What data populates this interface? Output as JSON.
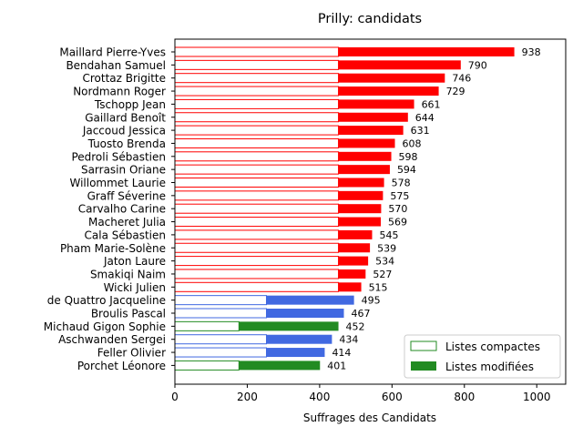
{
  "chart_data": {
    "type": "bar",
    "orientation": "horizontal-stacked",
    "title": "Prilly: candidats",
    "xlabel": "Suffrages des Candidats",
    "ylabel": "",
    "xlim": [
      0,
      1080
    ],
    "xticks": [
      "0",
      "200",
      "400",
      "600",
      "800",
      "1000"
    ],
    "grid": false,
    "legend_position": "bottom-right",
    "legend": [
      {
        "label": "Listes compactes",
        "style": "outline",
        "color": "#228b22"
      },
      {
        "label": "Listes modifiées",
        "style": "filled",
        "color": "#228b22"
      }
    ],
    "candidates": [
      {
        "name": "Maillard Pierre-Yves",
        "compact": 452,
        "total": 938,
        "total_label": "938",
        "color": "#ff0000"
      },
      {
        "name": "Bendahan Samuel",
        "compact": 452,
        "total": 790,
        "total_label": "790",
        "color": "#ff0000"
      },
      {
        "name": "Crottaz Brigitte",
        "compact": 452,
        "total": 746,
        "total_label": "746",
        "color": "#ff0000"
      },
      {
        "name": "Nordmann Roger",
        "compact": 452,
        "total": 729,
        "total_label": "729",
        "color": "#ff0000"
      },
      {
        "name": "Tschopp Jean",
        "compact": 452,
        "total": 661,
        "total_label": "661",
        "color": "#ff0000"
      },
      {
        "name": "Gaillard Benoît",
        "compact": 452,
        "total": 644,
        "total_label": "644",
        "color": "#ff0000"
      },
      {
        "name": "Jaccoud Jessica",
        "compact": 452,
        "total": 631,
        "total_label": "631",
        "color": "#ff0000"
      },
      {
        "name": "Tuosto Brenda",
        "compact": 452,
        "total": 608,
        "total_label": "608",
        "color": "#ff0000"
      },
      {
        "name": "Pedroli Sébastien",
        "compact": 452,
        "total": 598,
        "total_label": "598",
        "color": "#ff0000"
      },
      {
        "name": "Sarrasin Oriane",
        "compact": 452,
        "total": 594,
        "total_label": "594",
        "color": "#ff0000"
      },
      {
        "name": "Willommet Laurie",
        "compact": 452,
        "total": 578,
        "total_label": "578",
        "color": "#ff0000"
      },
      {
        "name": "Graff Séverine",
        "compact": 452,
        "total": 575,
        "total_label": "575",
        "color": "#ff0000"
      },
      {
        "name": "Carvalho Carine",
        "compact": 452,
        "total": 570,
        "total_label": "570",
        "color": "#ff0000"
      },
      {
        "name": "Macheret Julia",
        "compact": 452,
        "total": 569,
        "total_label": "569",
        "color": "#ff0000"
      },
      {
        "name": "Cala Sébastien",
        "compact": 452,
        "total": 545,
        "total_label": "545",
        "color": "#ff0000"
      },
      {
        "name": "Pham Marie-Solène",
        "compact": 452,
        "total": 539,
        "total_label": "539",
        "color": "#ff0000"
      },
      {
        "name": "Jaton Laure",
        "compact": 452,
        "total": 534,
        "total_label": "534",
        "color": "#ff0000"
      },
      {
        "name": "Smakiqi Naim",
        "compact": 452,
        "total": 527,
        "total_label": "527",
        "color": "#ff0000"
      },
      {
        "name": "Wicki Julien",
        "compact": 452,
        "total": 515,
        "total_label": "515",
        "color": "#ff0000"
      },
      {
        "name": "de Quattro Jacqueline",
        "compact": 253,
        "total": 495,
        "total_label": "495",
        "color": "#4169e1"
      },
      {
        "name": "Broulis Pascal",
        "compact": 253,
        "total": 467,
        "total_label": "467",
        "color": "#4169e1"
      },
      {
        "name": "Michaud Gigon Sophie",
        "compact": 177,
        "total": 452,
        "total_label": "452",
        "color": "#228b22"
      },
      {
        "name": "Aschwanden Sergei",
        "compact": 253,
        "total": 434,
        "total_label": "434",
        "color": "#4169e1"
      },
      {
        "name": "Feller Olivier",
        "compact": 253,
        "total": 414,
        "total_label": "414",
        "color": "#4169e1"
      },
      {
        "name": "Porchet Léonore",
        "compact": 177,
        "total": 401,
        "total_label": "401",
        "color": "#228b22"
      }
    ]
  }
}
